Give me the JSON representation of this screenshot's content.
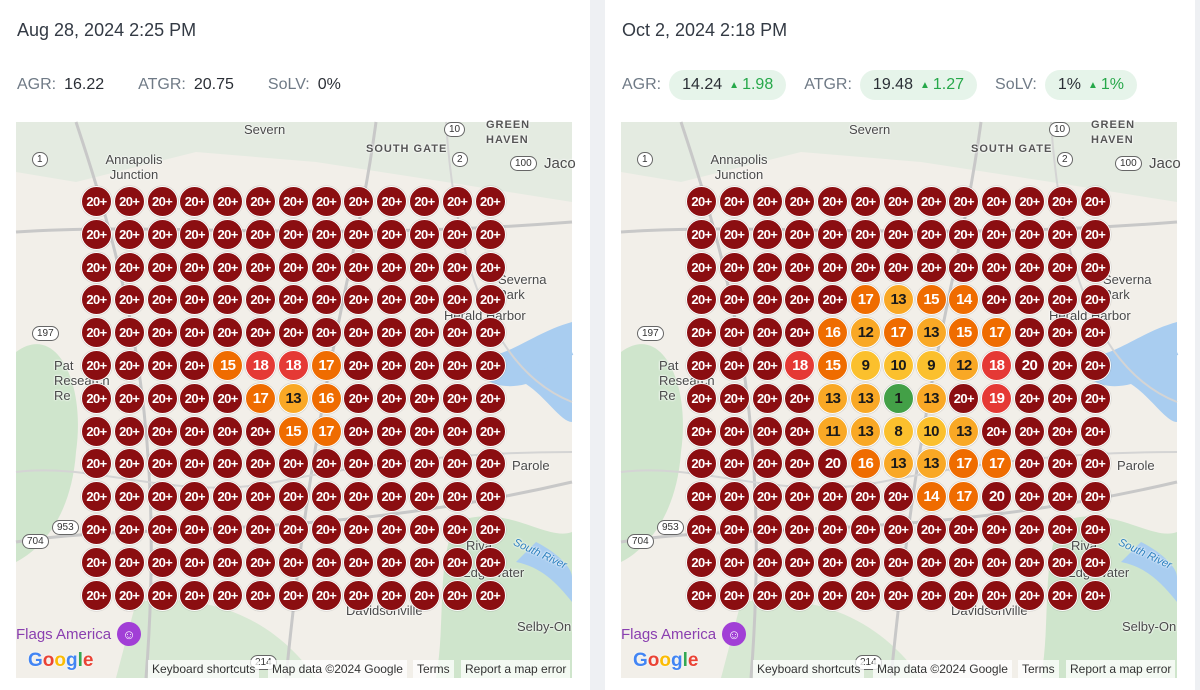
{
  "panels": [
    {
      "timestamp": "Aug 28, 2024 2:25 PM",
      "metrics": [
        {
          "label": "AGR:",
          "value": "16.22"
        },
        {
          "label": "ATGR:",
          "value": "20.75"
        },
        {
          "label": "SoLV:",
          "value": "0%"
        }
      ],
      "grid": [
        [
          "20+",
          "20+",
          "20+",
          "20+",
          "20+",
          "20+",
          "20+",
          "20+",
          "20+",
          "20+",
          "20+",
          "20+",
          "20+"
        ],
        [
          "20+",
          "20+",
          "20+",
          "20+",
          "20+",
          "20+",
          "20+",
          "20+",
          "20+",
          "20+",
          "20+",
          "20+",
          "20+"
        ],
        [
          "20+",
          "20+",
          "20+",
          "20+",
          "20+",
          "20+",
          "20+",
          "20+",
          "20+",
          "20+",
          "20+",
          "20+",
          "20+"
        ],
        [
          "20+",
          "20+",
          "20+",
          "20+",
          "20+",
          "20+",
          "20+",
          "20+",
          "20+",
          "20+",
          "20+",
          "20+",
          "20+"
        ],
        [
          "20+",
          "20+",
          "20+",
          "20+",
          "20+",
          "20+",
          "20+",
          "20+",
          "20+",
          "20+",
          "20+",
          "20+",
          "20+"
        ],
        [
          "20+",
          "20+",
          "20+",
          "20+",
          "15",
          "18",
          "18",
          "17",
          "20+",
          "20+",
          "20+",
          "20+",
          "20+"
        ],
        [
          "20+",
          "20+",
          "20+",
          "20+",
          "20+",
          "17",
          "13",
          "16",
          "20+",
          "20+",
          "20+",
          "20+",
          "20+"
        ],
        [
          "20+",
          "20+",
          "20+",
          "20+",
          "20+",
          "20+",
          "15",
          "17",
          "20+",
          "20+",
          "20+",
          "20+",
          "20+"
        ],
        [
          "20+",
          "20+",
          "20+",
          "20+",
          "20+",
          "20+",
          "20+",
          "20+",
          "20+",
          "20+",
          "20+",
          "20+",
          "20+"
        ],
        [
          "20+",
          "20+",
          "20+",
          "20+",
          "20+",
          "20+",
          "20+",
          "20+",
          "20+",
          "20+",
          "20+",
          "20+",
          "20+"
        ],
        [
          "20+",
          "20+",
          "20+",
          "20+",
          "20+",
          "20+",
          "20+",
          "20+",
          "20+",
          "20+",
          "20+",
          "20+",
          "20+"
        ],
        [
          "20+",
          "20+",
          "20+",
          "20+",
          "20+",
          "20+",
          "20+",
          "20+",
          "20+",
          "20+",
          "20+",
          "20+",
          "20+"
        ],
        [
          "20+",
          "20+",
          "20+",
          "20+",
          "20+",
          "20+",
          "20+",
          "20+",
          "20+",
          "20+",
          "20+",
          "20+",
          "20+"
        ]
      ]
    },
    {
      "timestamp": "Oct 2, 2024 2:18 PM",
      "metrics": [
        {
          "label": "AGR:",
          "value": "14.24",
          "delta": "1.98"
        },
        {
          "label": "ATGR:",
          "value": "19.48",
          "delta": "1.27"
        },
        {
          "label": "SoLV:",
          "value": "1%",
          "delta": "1%"
        }
      ],
      "grid": [
        [
          "20+",
          "20+",
          "20+",
          "20+",
          "20+",
          "20+",
          "20+",
          "20+",
          "20+",
          "20+",
          "20+",
          "20+",
          "20+"
        ],
        [
          "20+",
          "20+",
          "20+",
          "20+",
          "20+",
          "20+",
          "20+",
          "20+",
          "20+",
          "20+",
          "20+",
          "20+",
          "20+"
        ],
        [
          "20+",
          "20+",
          "20+",
          "20+",
          "20+",
          "20+",
          "20+",
          "20+",
          "20+",
          "20+",
          "20+",
          "20+",
          "20+"
        ],
        [
          "20+",
          "20+",
          "20+",
          "20+",
          "20+",
          "17",
          "13",
          "15",
          "14",
          "20+",
          "20+",
          "20+",
          "20+"
        ],
        [
          "20+",
          "20+",
          "20+",
          "20+",
          "16",
          "12",
          "17",
          "13",
          "15",
          "17",
          "20+",
          "20+",
          "20+"
        ],
        [
          "20+",
          "20+",
          "20+",
          "18",
          "15",
          "9",
          "10",
          "9",
          "12",
          "18",
          "20",
          "20+",
          "20+"
        ],
        [
          "20+",
          "20+",
          "20+",
          "20+",
          "13",
          "13",
          "1",
          "13",
          "20+",
          "19",
          "20+",
          "20+",
          "20+"
        ],
        [
          "20+",
          "20+",
          "20+",
          "20+",
          "11",
          "13",
          "8",
          "10",
          "13",
          "20+",
          "20+",
          "20+",
          "20+"
        ],
        [
          "20+",
          "20+",
          "20+",
          "20+",
          "20",
          "16",
          "13",
          "13",
          "17",
          "17",
          "20+",
          "20+",
          "20+"
        ],
        [
          "20+",
          "20+",
          "20+",
          "20+",
          "20+",
          "20+",
          "20+",
          "14",
          "17",
          "20",
          "20+",
          "20+",
          "20+"
        ],
        [
          "20+",
          "20+",
          "20+",
          "20+",
          "20+",
          "20+",
          "20+",
          "20+",
          "20+",
          "20+",
          "20+",
          "20+",
          "20+"
        ],
        [
          "20+",
          "20+",
          "20+",
          "20+",
          "20+",
          "20+",
          "20+",
          "20+",
          "20+",
          "20+",
          "20+",
          "20+",
          "20+"
        ],
        [
          "20+",
          "20+",
          "20+",
          "20+",
          "20+",
          "20+",
          "20+",
          "20+",
          "20+",
          "20+",
          "20+",
          "20+",
          "20+"
        ]
      ]
    }
  ],
  "map": {
    "labels": {
      "severn": "Severn",
      "green_haven": "GREEN HAVEN",
      "south_gate": "SOUTH GATE",
      "jacobsville": "Jaco",
      "annapolis_junction": "Annapolis Junction",
      "severna_park": "Severna Park",
      "herald_harbor": "Herald Harbor",
      "patuxent": "Pat Research Re",
      "parole": "Parole",
      "riva": "Riva",
      "edgewater": "Edgewater",
      "davidsonville": "Davidsonville",
      "selby": "Selby-On",
      "south_river": "South River",
      "flags_america": "Flags America",
      "route_shields": [
        "10",
        "2",
        "100",
        "1",
        "197",
        "953",
        "704",
        "214"
      ]
    },
    "google_logo": "Google",
    "attribution": {
      "shortcuts": "Keyboard shortcuts",
      "map_data": "Map data ©2024 Google",
      "terms": "Terms",
      "report": "Report a map error"
    }
  },
  "colors": {
    "rank_20plus": "#8b0e11",
    "rank_16_19": "#e53935",
    "rank_14_17": "#ef6c00",
    "rank_11_13": "#f9a825",
    "rank_8_10": "#fbc02d",
    "rank_1": "#43a047",
    "pill_bg": "#e6f4ea",
    "delta_green": "#27a84a"
  }
}
